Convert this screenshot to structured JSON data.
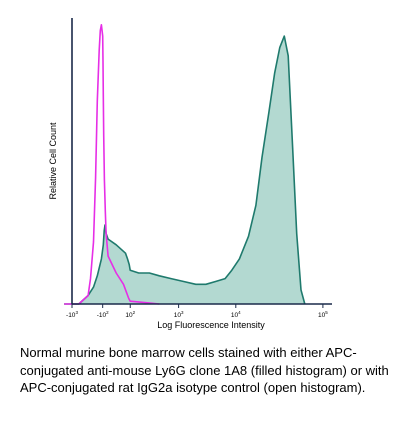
{
  "chart_data": {
    "type": "area",
    "title": "",
    "xlabel": "Log Fluorescence Intensity",
    "ylabel": "Relative Cell Count",
    "x_scale": "biexponential",
    "x_ticks": [
      {
        "base": "-10",
        "exp": "3",
        "value": -1000
      },
      {
        "base": "-10",
        "exp": "2",
        "value": -100
      },
      {
        "base": "10",
        "exp": "2",
        "value": 100
      },
      {
        "base": "10",
        "exp": "3",
        "value": 1000
      },
      {
        "base": "10",
        "exp": "4",
        "value": 10000
      },
      {
        "base": "10",
        "exp": "5",
        "value": 100000
      }
    ],
    "y_ticks": [],
    "grid": false,
    "series": [
      {
        "style": "filled",
        "fill": "#b3d9d1",
        "stroke": "#1f7a6d",
        "x": [
          -1800,
          -600,
          -300,
          -200,
          -150,
          -110,
          -80,
          -60,
          -45,
          -30,
          -15,
          0,
          20,
          40,
          70,
          100,
          150,
          250,
          400,
          700,
          1200,
          2000,
          3000,
          4500,
          6500,
          8500,
          11000,
          14000,
          17000,
          20000,
          24000,
          28000,
          32000,
          36000,
          40000,
          45000,
          50000,
          56000,
          62000
        ],
        "values": [
          0,
          0,
          3,
          6,
          10,
          16,
          21,
          26,
          28,
          25,
          23,
          21,
          18,
          16,
          14,
          12,
          11,
          11,
          10,
          9,
          8,
          7,
          7,
          8,
          9,
          12,
          16,
          24,
          35,
          52,
          68,
          82,
          91,
          95,
          88,
          55,
          25,
          5,
          0
        ]
      },
      {
        "style": "open",
        "fill": "none",
        "stroke": "#e62ee6",
        "x": [
          -1800,
          -600,
          -300,
          -250,
          -200,
          -170,
          -150,
          -130,
          -120,
          -110,
          -100,
          -90,
          -80,
          -70,
          -55,
          -40,
          -30,
          -15,
          0,
          10,
          30,
          60,
          100,
          200,
          400
        ],
        "values": [
          0,
          0,
          3,
          9,
          22,
          45,
          72,
          90,
          97,
          99,
          95,
          86,
          74,
          60,
          44,
          33,
          25,
          17,
          11,
          7,
          4,
          2,
          1,
          0.5,
          0
        ]
      }
    ]
  },
  "caption": "Normal murine bone marrow cells stained with either APC-conjugated anti-mouse Ly6G clone 1A8 (filled histogram) or with APC-conjugated rat IgG2a isotype control (open histogram)."
}
